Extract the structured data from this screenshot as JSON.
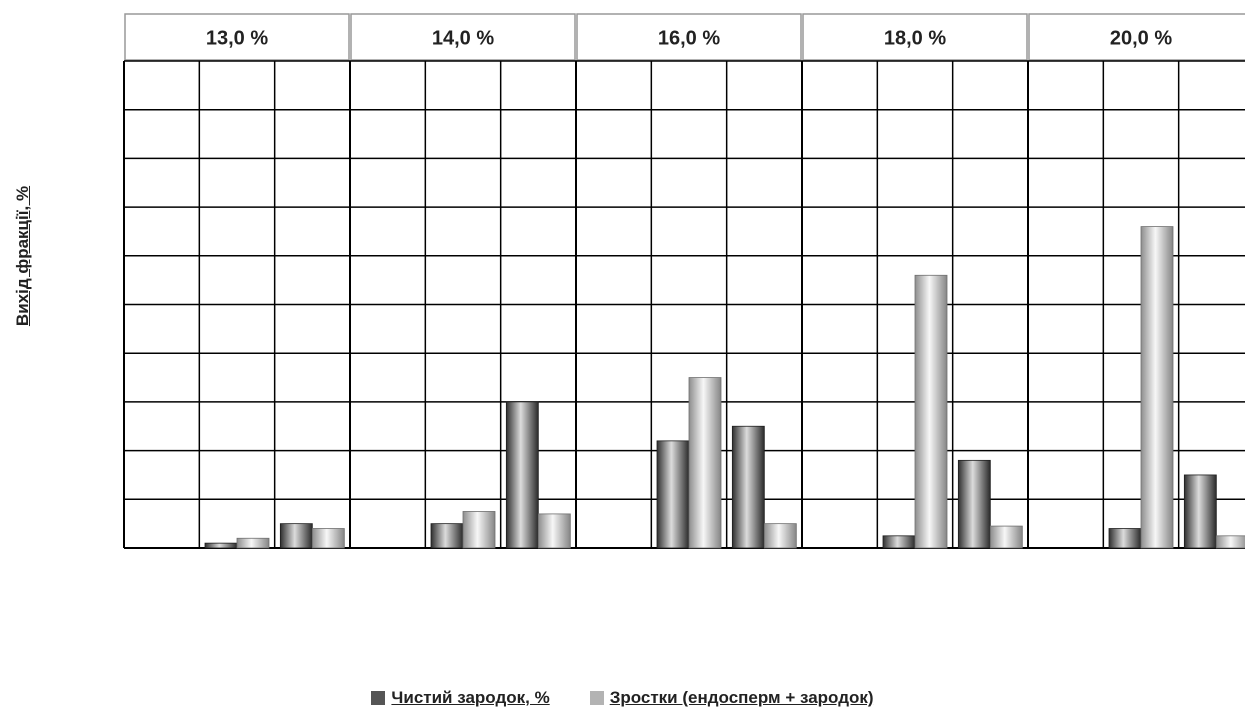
{
  "chart_data": {
    "type": "bar",
    "groups": [
      "13,0 %",
      "14,0 %",
      "16,0 %",
      "18,0 %",
      "20,0 %"
    ],
    "sub_categories": 3,
    "ylabel": "Вихід фракції, %",
    "ylim": [
      0,
      10
    ],
    "grid": true,
    "legend_position": "bottom",
    "series": [
      {
        "name": "Чистий зародок, %",
        "color": "#555555",
        "values": [
          [
            null,
            0.1,
            0.5
          ],
          [
            null,
            0.5,
            3.0
          ],
          [
            null,
            2.2,
            2.5
          ],
          [
            null,
            0.25,
            1.8
          ],
          [
            null,
            0.4,
            1.5
          ]
        ]
      },
      {
        "name": "Зростки (ендосперм + зародок)",
        "color": "#b3b3b3",
        "values": [
          [
            null,
            0.2,
            0.4
          ],
          [
            null,
            0.75,
            0.7
          ],
          [
            null,
            3.5,
            0.5
          ],
          [
            null,
            5.6,
            0.45
          ],
          [
            null,
            6.6,
            0.25
          ]
        ]
      }
    ]
  }
}
